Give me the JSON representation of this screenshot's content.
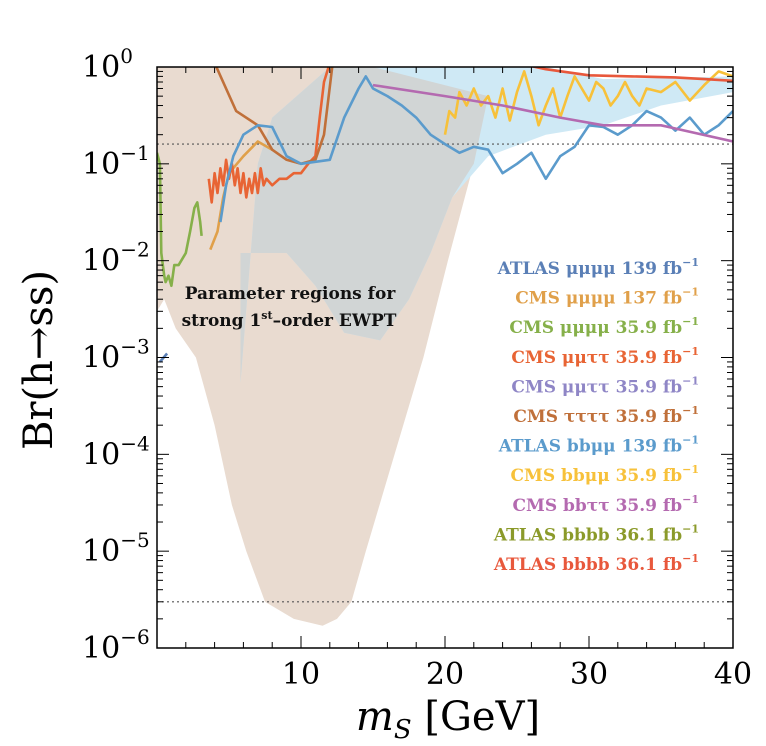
{
  "chart_data": {
    "type": "line",
    "xlabel": "m_S [GeV]",
    "ylabel": "Br(h→ss)",
    "xlim": [
      0,
      40
    ],
    "ylim": [
      1e-06,
      1
    ],
    "yscale": "log",
    "x_ticks": [
      10,
      20,
      30,
      40
    ],
    "y_ticks": [
      {
        "exp": 0,
        "value": 1
      },
      {
        "exp": -1,
        "value": 0.1
      },
      {
        "exp": -2,
        "value": 0.01
      },
      {
        "exp": -3,
        "value": 0.001
      },
      {
        "exp": -4,
        "value": 0.0001
      },
      {
        "exp": -5,
        "value": 1e-05
      },
      {
        "exp": -6,
        "value": 1e-06
      }
    ],
    "reference_lines": [
      0.16,
      3e-06
    ],
    "annotation": {
      "line1": "Parameter regions for",
      "line2_pre": "strong 1",
      "line2_sup": "st",
      "line2_post": "–order EWPT"
    },
    "regions": [
      {
        "name": "ewpt-tan",
        "color": "#e9dbd0",
        "points": [
          [
            0,
            1
          ],
          [
            15,
            1
          ],
          [
            23,
            0.5
          ],
          [
            22,
            0.1
          ],
          [
            20.2,
            0.01
          ],
          [
            18.5,
            0.001
          ],
          [
            16.5,
            0.0001
          ],
          [
            14.5,
            1e-05
          ],
          [
            13.5,
            3e-06
          ],
          [
            12.5,
            2e-06
          ],
          [
            11.5,
            1.7e-06
          ],
          [
            9.5,
            2e-06
          ],
          [
            7.5,
            3e-06
          ],
          [
            6.2,
            1e-05
          ],
          [
            5.2,
            3e-05
          ],
          [
            4,
            0.0002
          ],
          [
            2.7,
            0.001
          ],
          [
            1.3,
            0.002
          ],
          [
            0.5,
            0.004
          ],
          [
            0,
            0.003
          ]
        ]
      },
      {
        "name": "ewpt-blue",
        "color": "#cfe9f5",
        "points": [
          [
            8,
            0.3
          ],
          [
            12,
            1
          ],
          [
            27,
            1
          ],
          [
            31,
            0.75
          ],
          [
            40,
            0.8
          ],
          [
            40,
            0.55
          ],
          [
            35,
            0.4
          ],
          [
            31,
            0.25
          ],
          [
            27,
            0.2
          ],
          [
            23,
            0.12
          ],
          [
            20.5,
            0.045
          ],
          [
            19,
            0.012
          ],
          [
            17.5,
            0.004
          ],
          [
            15.5,
            0.0015
          ],
          [
            13,
            0.0018
          ],
          [
            11,
            0.0055
          ],
          [
            9,
            0.012
          ],
          [
            5.8,
            0.012
          ],
          [
            5.8,
            0.00055
          ],
          [
            7,
            0.1
          ]
        ]
      },
      {
        "name": "ewpt-overlap",
        "color": "#d1d5d5",
        "points": [
          [
            8,
            0.3
          ],
          [
            12,
            1
          ],
          [
            15,
            1
          ],
          [
            23,
            0.5
          ],
          [
            22,
            0.1
          ],
          [
            20.5,
            0.045
          ],
          [
            19,
            0.012
          ],
          [
            17.5,
            0.004
          ],
          [
            15.5,
            0.0015
          ],
          [
            13,
            0.0018
          ],
          [
            11,
            0.0055
          ],
          [
            9,
            0.012
          ],
          [
            5.8,
            0.012
          ],
          [
            5.8,
            0.00055
          ],
          [
            7,
            0.1
          ]
        ]
      }
    ],
    "series": [
      {
        "name": "ATLAS μμμμ 139 fb",
        "color": "#5a7fb6",
        "points": [
          [
            0.2,
            0.0009
          ],
          [
            0.7,
            0.0011
          ]
        ]
      },
      {
        "name": "CMS μμμμ 137 fb",
        "color": "#e0a04a",
        "points": [
          [
            3.7,
            0.013
          ],
          [
            4.2,
            0.02
          ],
          [
            4.6,
            0.045
          ],
          [
            5,
            0.08
          ],
          [
            6,
            0.12
          ],
          [
            7,
            0.17
          ],
          [
            8,
            0.14
          ]
        ]
      },
      {
        "name": "CMS μμμμ 35.9 fb",
        "color": "#86b04a",
        "points": [
          [
            0,
            0.13
          ],
          [
            0.2,
            0.1
          ],
          [
            0.3,
            0.012
          ],
          [
            0.5,
            0.007
          ],
          [
            0.6,
            0.006
          ],
          [
            0.8,
            0.007
          ],
          [
            1,
            0.0055
          ],
          [
            1.2,
            0.009
          ],
          [
            1.5,
            0.009
          ],
          [
            2,
            0.012
          ],
          [
            2.3,
            0.02
          ],
          [
            2.6,
            0.035
          ],
          [
            2.8,
            0.04
          ],
          [
            3,
            0.025
          ],
          [
            3.1,
            0.018
          ]
        ]
      },
      {
        "name": "CMS μμττ 35.9 fb",
        "color": "#e86434",
        "points": [
          [
            3.6,
            0.07
          ],
          [
            3.8,
            0.04
          ],
          [
            4.0,
            0.08
          ],
          [
            4.2,
            0.05
          ],
          [
            4.4,
            0.09
          ],
          [
            4.6,
            0.06
          ],
          [
            4.8,
            0.11
          ],
          [
            5.0,
            0.07
          ],
          [
            5.2,
            0.1
          ],
          [
            5.4,
            0.06
          ],
          [
            5.6,
            0.09
          ],
          [
            5.8,
            0.05
          ],
          [
            6.0,
            0.08
          ],
          [
            6.2,
            0.045
          ],
          [
            6.4,
            0.07
          ],
          [
            6.6,
            0.05
          ],
          [
            6.8,
            0.08
          ],
          [
            7,
            0.05
          ],
          [
            7.2,
            0.09
          ],
          [
            7.4,
            0.06
          ],
          [
            7.6,
            0.07
          ],
          [
            8,
            0.06
          ],
          [
            8.5,
            0.07
          ],
          [
            9,
            0.07
          ],
          [
            9.5,
            0.08
          ],
          [
            10,
            0.08
          ],
          [
            10.5,
            0.1
          ],
          [
            11,
            0.12
          ],
          [
            11.3,
            0.3
          ],
          [
            11.6,
            0.7
          ],
          [
            12,
            1.1
          ]
        ]
      },
      {
        "name": "CMS μμττ 35.9 fb",
        "color": "#8f86c6",
        "points": []
      },
      {
        "name": "CMS ττττ 35.9 fb",
        "color": "#c0703a",
        "points": [
          [
            4,
            1.1
          ],
          [
            5.5,
            0.35
          ],
          [
            7,
            0.25
          ],
          [
            8,
            0.14
          ],
          [
            9,
            0.11
          ],
          [
            10,
            0.1
          ],
          [
            11,
            0.11
          ],
          [
            11.6,
            0.2
          ],
          [
            12.2,
            1.1
          ],
          [
            12.8,
            1.1
          ]
        ]
      },
      {
        "name": "ATLAS bbμμ 139 fb",
        "color": "#5b9bcc",
        "points": [
          [
            4.4,
            0.025
          ],
          [
            4.8,
            0.06
          ],
          [
            5.3,
            0.12
          ],
          [
            6,
            0.2
          ],
          [
            7,
            0.25
          ],
          [
            8,
            0.24
          ],
          [
            9,
            0.12
          ],
          [
            10,
            0.1
          ],
          [
            12,
            0.11
          ],
          [
            13,
            0.3
          ],
          [
            14,
            0.6
          ],
          [
            14.5,
            0.8
          ],
          [
            15,
            0.6
          ],
          [
            16,
            0.5
          ],
          [
            17,
            0.4
          ],
          [
            18,
            0.3
          ],
          [
            19,
            0.2
          ],
          [
            20,
            0.16
          ],
          [
            21,
            0.13
          ],
          [
            22,
            0.15
          ],
          [
            23,
            0.14
          ],
          [
            24,
            0.08
          ],
          [
            25,
            0.1
          ],
          [
            26,
            0.13
          ],
          [
            27,
            0.07
          ],
          [
            28,
            0.12
          ],
          [
            29,
            0.15
          ],
          [
            30,
            0.25
          ],
          [
            31,
            0.24
          ],
          [
            32,
            0.2
          ],
          [
            33,
            0.25
          ],
          [
            34,
            0.35
          ],
          [
            35,
            0.3
          ],
          [
            36,
            0.22
          ],
          [
            37,
            0.3
          ],
          [
            38,
            0.2
          ],
          [
            39,
            0.25
          ],
          [
            40,
            0.35
          ]
        ]
      },
      {
        "name": "CMS bbμμ 35.9 fb",
        "color": "#f7c13a",
        "points": [
          [
            20,
            0.2
          ],
          [
            20.3,
            0.35
          ],
          [
            20.7,
            0.3
          ],
          [
            21,
            0.55
          ],
          [
            21.5,
            0.4
          ],
          [
            22,
            0.6
          ],
          [
            22.5,
            0.4
          ],
          [
            23,
            0.5
          ],
          [
            23.5,
            0.3
          ],
          [
            24,
            0.6
          ],
          [
            24.5,
            0.28
          ],
          [
            25,
            0.55
          ],
          [
            25.5,
            0.9
          ],
          [
            26,
            0.5
          ],
          [
            26.5,
            0.25
          ],
          [
            27,
            0.4
          ],
          [
            27.5,
            0.6
          ],
          [
            28,
            0.3
          ],
          [
            28.5,
            0.5
          ],
          [
            29,
            0.8
          ],
          [
            29.5,
            0.6
          ],
          [
            30,
            0.45
          ],
          [
            30.5,
            0.7
          ],
          [
            31,
            0.6
          ],
          [
            31.5,
            0.4
          ],
          [
            32,
            0.5
          ],
          [
            32.5,
            0.7
          ],
          [
            33,
            0.5
          ],
          [
            33.5,
            0.4
          ],
          [
            34,
            0.6
          ],
          [
            35,
            0.55
          ],
          [
            36,
            0.7
          ],
          [
            37,
            0.45
          ],
          [
            38,
            0.65
          ],
          [
            39,
            0.9
          ],
          [
            40,
            0.8
          ]
        ]
      },
      {
        "name": "CMS bbττ 35.9 fb",
        "color": "#b46ab0",
        "points": [
          [
            15,
            0.65
          ],
          [
            20,
            0.5
          ],
          [
            24,
            0.4
          ],
          [
            28,
            0.3
          ],
          [
            31,
            0.25
          ],
          [
            35,
            0.25
          ],
          [
            40,
            0.17
          ]
        ]
      },
      {
        "name": "ATLAS bbbb 36.1 fb",
        "color": "#8b9a2a",
        "points": []
      },
      {
        "name": "ATLAS bbbb 36.1 fb",
        "color": "#e8583c",
        "points": [
          [
            25,
            1.1
          ],
          [
            27,
            0.95
          ],
          [
            30,
            0.82
          ],
          [
            33,
            0.8
          ],
          [
            36,
            0.78
          ],
          [
            38,
            0.75
          ],
          [
            40,
            0.72
          ]
        ]
      }
    ]
  }
}
